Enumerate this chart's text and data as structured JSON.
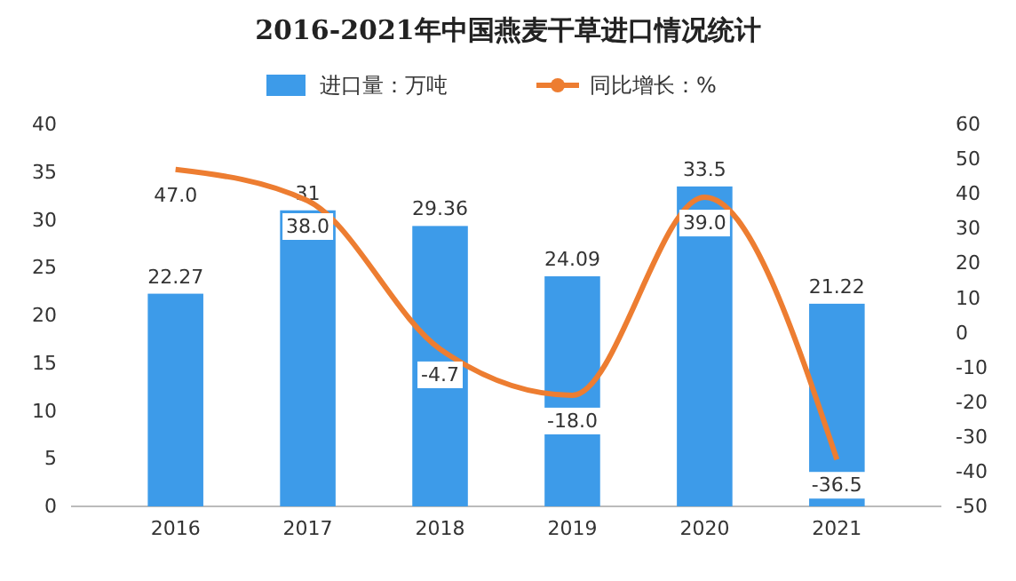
{
  "chart_data": {
    "type": "bar",
    "title": "2016-2021年中国燕麦干草进口情况统计",
    "categories": [
      "2016",
      "2017",
      "2018",
      "2019",
      "2020",
      "2021"
    ],
    "series": [
      {
        "name": "进口量：万吨",
        "color": "#3d9be9",
        "values": [
          22.27,
          31,
          29.36,
          24.09,
          33.5,
          21.22
        ],
        "value_labels": [
          "22.27",
          "31",
          "29.36",
          "24.09",
          "33.5",
          "21.22"
        ]
      },
      {
        "name": "同比增长：%",
        "type": "line",
        "axis": "y2",
        "color": "#ed7d31",
        "values": [
          47.0,
          38.0,
          -4.7,
          -18.0,
          39.0,
          -36.5
        ],
        "value_labels": [
          "47.0",
          "38.0",
          "-4.7",
          "-18.0",
          "39.0",
          "-36.5"
        ]
      }
    ],
    "ylim": [
      0,
      40
    ],
    "yticks": [
      0,
      5,
      10,
      15,
      20,
      25,
      30,
      35,
      40
    ],
    "y2lim": [
      -50,
      60
    ],
    "y2ticks": [
      -50,
      -40,
      -30,
      -20,
      -10,
      0,
      10,
      20,
      30,
      40,
      50,
      60
    ],
    "grid": false,
    "legend": "top",
    "marker": "none",
    "line_style": "solid"
  }
}
